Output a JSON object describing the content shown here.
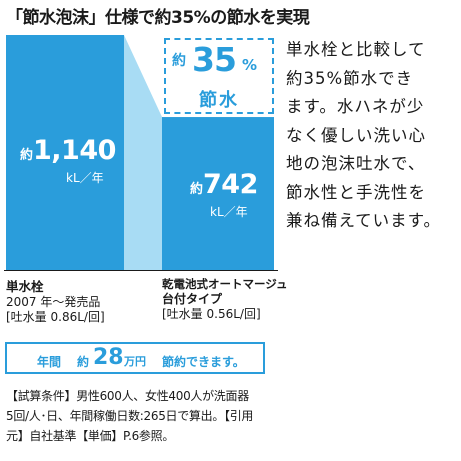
{
  "heading": "「節水泡沫」仕様で約35%の節水を実現",
  "description_lines": [
    "単水栓と比較して",
    "約35%節水でき",
    "ます。水ハネが少",
    "なく優しい洗い心",
    "地の泡沫吐水で、",
    "節水性と手洗性を",
    "兼ね備えています。"
  ],
  "badge": {
    "prefix": "約",
    "percent": "35",
    "percent_sign": "%",
    "label": "節水"
  },
  "chart_data": {
    "type": "bar",
    "categories": [
      "単水栓",
      "乾電池式オートマージュ 台付タイプ"
    ],
    "values": [
      1140,
      742
    ],
    "value_prefix": "約",
    "value_labels": [
      "1,140",
      "742"
    ],
    "unit": "kL／年",
    "category_details": [
      {
        "name": "単水栓",
        "sub1": "2007 年～発売品",
        "sub2": "[吐水量 0.86L/回]"
      },
      {
        "name": "乾電池式オートマージュ",
        "sub1": "台付タイプ",
        "sub2": "[吐水量 0.56L/回]"
      }
    ],
    "colors": {
      "bar": "#2a9ddb",
      "connector": "#a8dcf4"
    }
  },
  "savings": {
    "part1": "年間",
    "part2": "約",
    "amount": "28",
    "unit": "万円",
    "part3": "節約できます。"
  },
  "conditions": [
    "【試算条件】男性600人、女性400人が洗面器",
    "5回/人･日、年間稼働日数:265日で算出。【引用",
    "元】自社基準【単価】P.6参照。"
  ]
}
